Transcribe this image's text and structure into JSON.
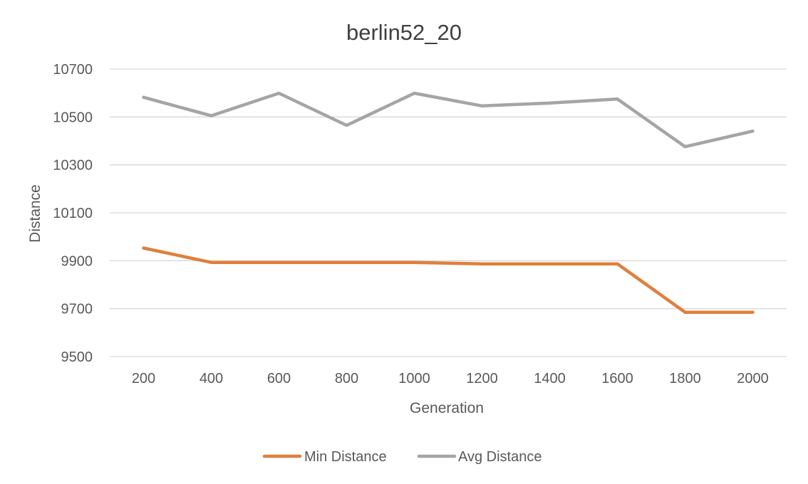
{
  "chart_data": {
    "type": "line",
    "title": "berlin52_20",
    "xlabel": "Generation",
    "ylabel": "Distance",
    "x": [
      200,
      400,
      600,
      800,
      1000,
      1200,
      1400,
      1600,
      1800,
      2000
    ],
    "ylim": [
      9500,
      10700
    ],
    "yticks": [
      9500,
      9700,
      9900,
      10100,
      10300,
      10500,
      10700
    ],
    "grid": true,
    "legend_position": "bottom",
    "series": [
      {
        "name": "Min Distance",
        "color": "#e07f3c",
        "values": [
          9953,
          9893,
          9893,
          9893,
          9893,
          9887,
          9887,
          9887,
          9685,
          9685
        ]
      },
      {
        "name": "Avg Distance",
        "color": "#a5a5a5",
        "values": [
          10582,
          10505,
          10599,
          10465,
          10599,
          10546,
          10558,
          10575,
          10376,
          10441
        ]
      }
    ]
  }
}
